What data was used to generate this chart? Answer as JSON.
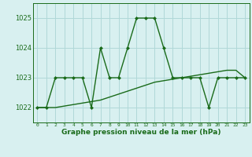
{
  "line1_x": [
    0,
    1,
    2,
    3,
    4,
    5,
    6,
    7,
    8,
    9,
    10,
    11,
    12,
    13,
    14,
    15,
    16,
    17,
    18,
    19,
    20,
    21,
    22,
    23
  ],
  "line1_y": [
    1022,
    1022,
    1023,
    1023,
    1023,
    1023,
    1022,
    1024,
    1023,
    1023,
    1024,
    1025,
    1025,
    1025,
    1024,
    1023,
    1023,
    1023,
    1023,
    1022,
    1023,
    1023,
    1023,
    1023
  ],
  "line2_x": [
    0,
    1,
    2,
    3,
    4,
    5,
    6,
    7,
    8,
    9,
    10,
    11,
    12,
    13,
    14,
    15,
    16,
    17,
    18,
    19,
    20,
    21,
    22,
    23
  ],
  "line2_y": [
    1022.0,
    1022.0,
    1022.0,
    1022.05,
    1022.1,
    1022.15,
    1022.2,
    1022.25,
    1022.35,
    1022.45,
    1022.55,
    1022.65,
    1022.75,
    1022.85,
    1022.9,
    1022.95,
    1023.0,
    1023.05,
    1023.1,
    1023.15,
    1023.2,
    1023.25,
    1023.25,
    1023.0
  ],
  "line_color": "#1a6b1a",
  "bg_color": "#d8f0f0",
  "grid_color": "#b0d8d8",
  "xlabel": "Graphe pression niveau de la mer (hPa)",
  "ylim": [
    1021.5,
    1025.5
  ],
  "xlim": [
    -0.5,
    23.5
  ],
  "yticks": [
    1022,
    1023,
    1024,
    1025
  ],
  "xticks": [
    0,
    1,
    2,
    3,
    4,
    5,
    6,
    7,
    8,
    9,
    10,
    11,
    12,
    13,
    14,
    15,
    16,
    17,
    18,
    19,
    20,
    21,
    22,
    23
  ],
  "marker_size": 2.5,
  "linewidth": 1.0
}
